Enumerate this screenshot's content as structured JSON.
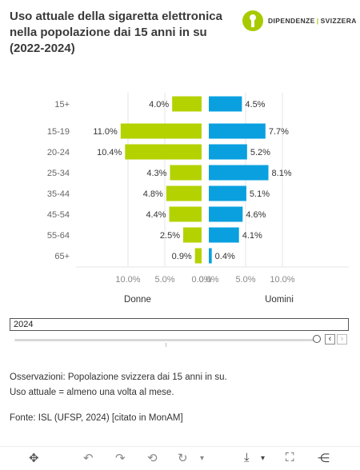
{
  "title_lines": [
    "Uso attuale della sigaretta elettronica",
    "nella popolazione dai 15 anni in su",
    "(2022-2024)"
  ],
  "logo": {
    "text_left": "DIPENDENZE",
    "separator": "|",
    "text_right": "SVIZZERA"
  },
  "chart_data": {
    "type": "bar",
    "orientation": "horizontal-butterfly",
    "categories": [
      "15+",
      "15-19",
      "20-24",
      "25-34",
      "35-44",
      "45-54",
      "55-64",
      "65+"
    ],
    "series": [
      {
        "name": "Donne",
        "values": [
          4.0,
          11.0,
          10.4,
          4.3,
          4.8,
          4.4,
          2.5,
          0.9
        ],
        "color": "#b4d200"
      },
      {
        "name": "Uomini",
        "values": [
          4.5,
          7.7,
          5.2,
          8.1,
          5.1,
          4.6,
          4.1,
          0.4
        ],
        "color": "#0aa0e0"
      }
    ],
    "value_labels_left": [
      "4.0%",
      "11.0%",
      "10.4%",
      "4.3%",
      "4.8%",
      "4.4%",
      "2.5%",
      "0.9%"
    ],
    "value_labels_right": [
      "4.5%",
      "7.7%",
      "5.2%",
      "8.1%",
      "5.1%",
      "4.6%",
      "4.1%",
      "0.4%"
    ],
    "xlim": [
      0,
      12
    ],
    "ticks_left": [
      "10.0%",
      "5.0%",
      "0.0%"
    ],
    "ticks_right": [
      "0.0%",
      "5.0%",
      "10.0%"
    ],
    "tick_values": [
      10,
      5,
      0
    ],
    "panel_labels": [
      "Donne",
      "Uomini"
    ],
    "grid": "vertical"
  },
  "timeline": {
    "value": "2024",
    "prev": "‹",
    "next": "›"
  },
  "notes": [
    "Osservazioni: Popolazione svizzera dai 15 anni in su.",
    "Uso attuale = almeno una volta al mese."
  ],
  "source": "Fonte: ISL (UFSP, 2024) [citato in MonAM]",
  "toolbar_icons": [
    "move-icon",
    "undo-icon",
    "redo-icon",
    "reset-icon",
    "step-icon",
    "download-icon",
    "fullscreen-icon",
    "share-icon"
  ]
}
